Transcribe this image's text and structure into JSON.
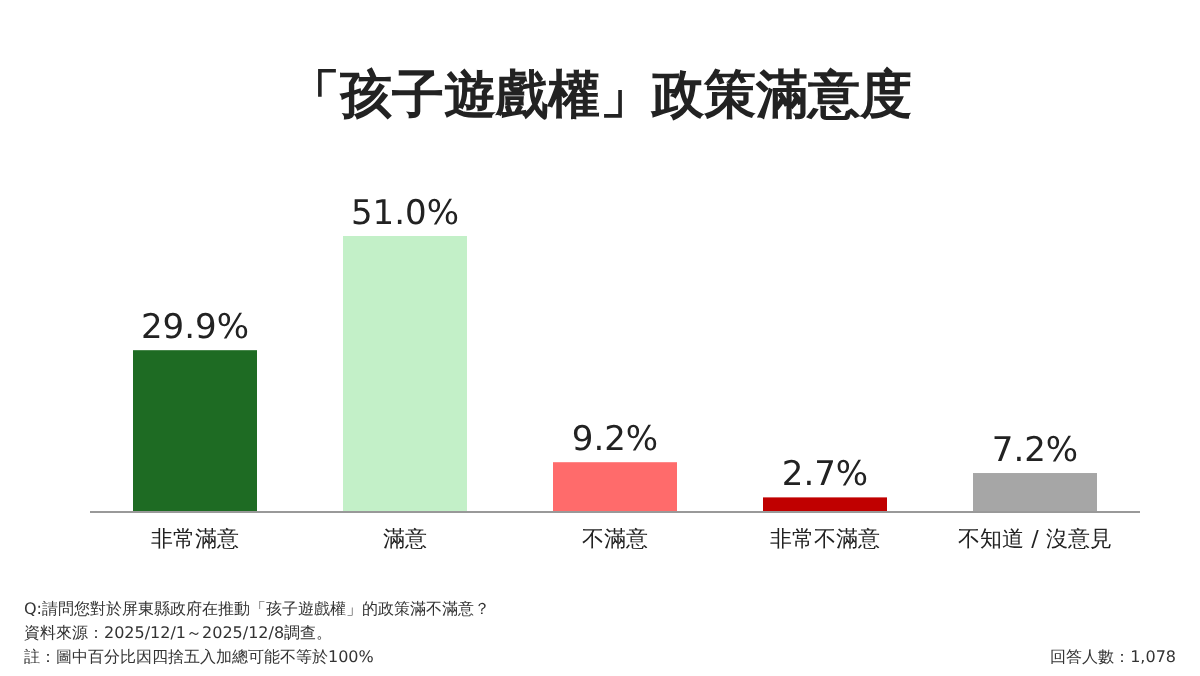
{
  "chart_data": {
    "type": "bar",
    "title": "「孩子遊戲權」政策滿意度",
    "categories": [
      "非常滿意",
      "滿意",
      "不滿意",
      "非常不滿意",
      "不知道 / 沒意見"
    ],
    "values": [
      29.9,
      51.0,
      9.2,
      2.7,
      7.2
    ],
    "value_labels": [
      "29.9%",
      "51.0%",
      "9.2%",
      "2.7%",
      "7.2%"
    ],
    "colors": [
      "#1e6b23",
      "#c3f0c8",
      "#ff6b6b",
      "#c00000",
      "#a6a6a6"
    ],
    "annotations": [
      "Q:請問您對於屏東縣政府在推動「孩子遊戲權」的政策滿不滿意？",
      "資料來源：2025/12/1～2025/12/8調查。",
      "註：圖中百分比因四捨五入加總可能不等於100%",
      "回答人數：1,078"
    ]
  }
}
